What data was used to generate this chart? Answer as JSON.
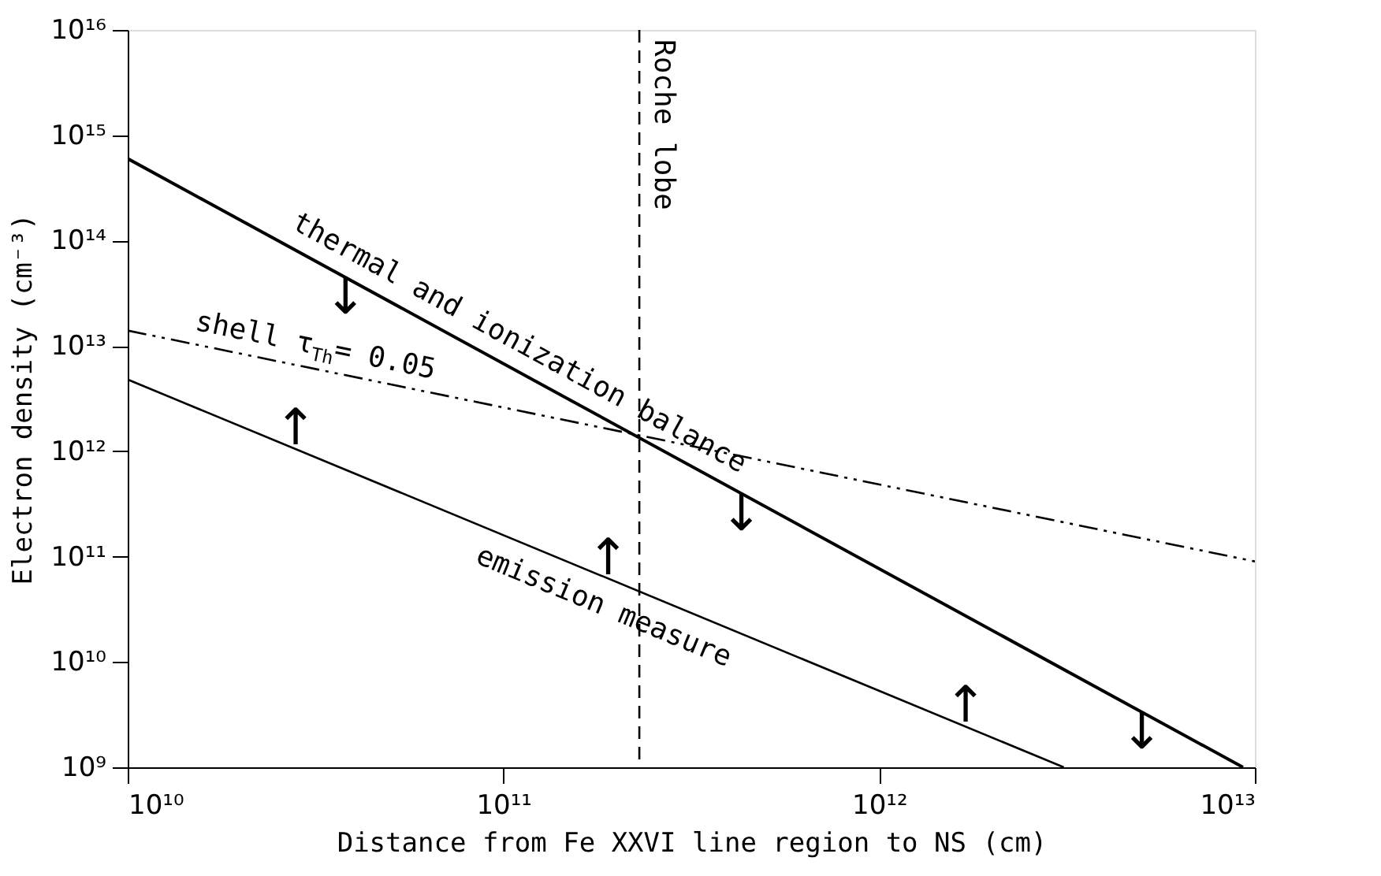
{
  "chart_data": {
    "type": "line",
    "xlabel": "Distance from Fe XXVI line region to NS (cm)",
    "ylabel": "Electron density (cm⁻³)",
    "xlim": [
      10000000000.0,
      10000000000000.0
    ],
    "ylim": [
      1000000000.0,
      1e+16
    ],
    "log": "xy",
    "grid": false,
    "xticks": [
      {
        "value": 10000000000.0,
        "label": "10¹⁰"
      },
      {
        "value": 100000000000.0,
        "label": "10¹¹"
      },
      {
        "value": 1000000000000.0,
        "label": "10¹²"
      },
      {
        "value": 10000000000000.0,
        "label": "10¹³"
      }
    ],
    "yticks": [
      {
        "value": 1000000000.0,
        "label": "10⁹"
      },
      {
        "value": 10000000000.0,
        "label": "10¹⁰"
      },
      {
        "value": 100000000000.0,
        "label": "10¹¹"
      },
      {
        "value": 1000000000000.0,
        "label": "10¹²"
      },
      {
        "value": 10000000000000.0,
        "label": "10¹³"
      },
      {
        "value": 100000000000000.0,
        "label": "10¹⁴"
      },
      {
        "value": 1000000000000000.0,
        "label": "10¹⁵"
      },
      {
        "value": 1e+16,
        "label": "10¹⁶"
      }
    ],
    "series": [
      {
        "name": "thermal and ionization balance",
        "color": "#000000",
        "line_style": "solid",
        "x": [
          10000000000.0,
          9300000000000.0
        ],
        "values": [
          600000000000000.0,
          1000000000.0
        ]
      },
      {
        "name": "shell τ$_{Th}$ = 0.05",
        "color": "#000000",
        "line_style": "dashed",
        "x": [
          10000000000.0,
          10000000000000.0
        ],
        "values": [
          14000000000000.0,
          90000000000.0
        ]
      },
      {
        "name": "emission measure",
        "color": "#000000",
        "line_style": "solid",
        "x": [
          10000000000.0,
          3100000000000.0
        ],
        "values": [
          4800000000000.0,
          1000000000.0
        ]
      }
    ],
    "ref_lines": [
      {
        "axis": "x",
        "value": 230000000000.0,
        "label": "Roche lobe",
        "color": "#000000",
        "line_style": "dashed"
      }
    ],
    "annotations": [
      {
        "text": "↓",
        "x": 38000000000.0,
        "y": 44600000000000.0
      },
      {
        "text": "↓",
        "x": 430000000000.0,
        "y": 396000000000.0
      },
      {
        "text": "↓",
        "x": 5000000000000.0,
        "y": 3320000000.0
      },
      {
        "text": "↑",
        "x": 28000000000.0,
        "y": 1050000000000.0
      },
      {
        "text": "↑",
        "x": 190000000000.0,
        "y": 61700000000.0
      },
      {
        "text": "↑",
        "x": 1700000000000.0,
        "y": 2430000000.0
      }
    ]
  }
}
